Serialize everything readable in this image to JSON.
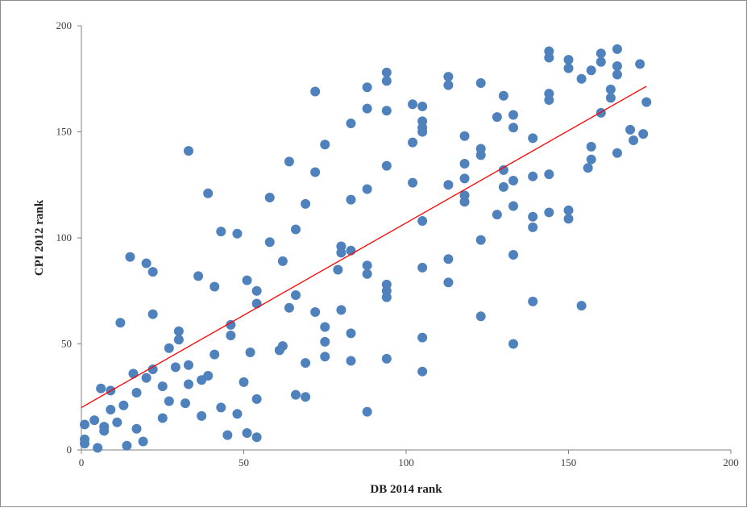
{
  "chart_data": {
    "type": "scatter",
    "xlabel": "DB 2014 rank",
    "ylabel": "CPI 2012 rank",
    "xlim": [
      0,
      200
    ],
    "ylim": [
      0,
      200
    ],
    "x_ticks": [
      "0",
      "50",
      "100",
      "150",
      "200"
    ],
    "y_ticks": [
      "0",
      "50",
      "100",
      "150",
      "200"
    ],
    "grid": false,
    "legend": "none",
    "colors": {
      "points": "#4f81bd",
      "trendline": "#ff0000",
      "axis": "#7f7f7f"
    },
    "trendline": {
      "x": [
        0,
        174
      ],
      "y": [
        20,
        171.5
      ]
    },
    "points": [
      [
        1,
        12
      ],
      [
        1,
        5
      ],
      [
        1,
        3
      ],
      [
        4,
        14
      ],
      [
        5,
        1
      ],
      [
        6,
        29
      ],
      [
        7,
        11
      ],
      [
        7,
        9
      ],
      [
        9,
        28
      ],
      [
        9,
        19
      ],
      [
        11,
        13
      ],
      [
        12,
        60
      ],
      [
        13,
        21
      ],
      [
        14,
        2
      ],
      [
        15,
        91
      ],
      [
        16,
        36
      ],
      [
        17,
        27
      ],
      [
        17,
        10
      ],
      [
        19,
        4
      ],
      [
        20,
        88
      ],
      [
        20,
        34
      ],
      [
        22,
        84
      ],
      [
        22,
        64
      ],
      [
        22,
        38
      ],
      [
        25,
        30
      ],
      [
        25,
        15
      ],
      [
        27,
        48
      ],
      [
        27,
        23
      ],
      [
        29,
        39
      ],
      [
        30,
        56
      ],
      [
        30,
        52
      ],
      [
        32,
        22
      ],
      [
        33,
        141
      ],
      [
        33,
        40
      ],
      [
        33,
        31
      ],
      [
        36,
        82
      ],
      [
        37,
        33
      ],
      [
        37,
        16
      ],
      [
        39,
        121
      ],
      [
        39,
        35
      ],
      [
        41,
        77
      ],
      [
        41,
        45
      ],
      [
        43,
        103
      ],
      [
        43,
        20
      ],
      [
        45,
        7
      ],
      [
        46,
        59
      ],
      [
        46,
        54
      ],
      [
        48,
        102
      ],
      [
        48,
        17
      ],
      [
        50,
        32
      ],
      [
        51,
        80
      ],
      [
        51,
        8
      ],
      [
        52,
        46
      ],
      [
        54,
        75
      ],
      [
        54,
        69
      ],
      [
        54,
        24
      ],
      [
        54,
        6
      ],
      [
        58,
        119
      ],
      [
        58,
        98
      ],
      [
        61,
        47
      ],
      [
        62,
        89
      ],
      [
        62,
        49
      ],
      [
        64,
        136
      ],
      [
        64,
        67
      ],
      [
        66,
        104
      ],
      [
        66,
        73
      ],
      [
        66,
        26
      ],
      [
        69,
        116
      ],
      [
        69,
        41
      ],
      [
        69,
        25
      ],
      [
        72,
        169
      ],
      [
        72,
        131
      ],
      [
        72,
        65
      ],
      [
        75,
        144
      ],
      [
        75,
        58
      ],
      [
        75,
        51
      ],
      [
        75,
        44
      ],
      [
        79,
        85
      ],
      [
        80,
        96
      ],
      [
        80,
        93
      ],
      [
        80,
        66
      ],
      [
        83,
        154
      ],
      [
        83,
        118
      ],
      [
        83,
        94
      ],
      [
        83,
        55
      ],
      [
        83,
        42
      ],
      [
        88,
        171
      ],
      [
        88,
        161
      ],
      [
        88,
        123
      ],
      [
        88,
        87
      ],
      [
        88,
        83
      ],
      [
        88,
        18
      ],
      [
        94,
        178
      ],
      [
        94,
        174
      ],
      [
        94,
        160
      ],
      [
        94,
        134
      ],
      [
        94,
        78
      ],
      [
        94,
        75
      ],
      [
        94,
        72
      ],
      [
        94,
        43
      ],
      [
        102,
        163
      ],
      [
        102,
        145
      ],
      [
        102,
        126
      ],
      [
        105,
        162
      ],
      [
        105,
        155
      ],
      [
        105,
        152
      ],
      [
        105,
        150
      ],
      [
        105,
        108
      ],
      [
        105,
        86
      ],
      [
        105,
        53
      ],
      [
        105,
        37
      ],
      [
        113,
        176
      ],
      [
        113,
        172
      ],
      [
        113,
        125
      ],
      [
        113,
        90
      ],
      [
        113,
        79
      ],
      [
        118,
        148
      ],
      [
        118,
        135
      ],
      [
        118,
        128
      ],
      [
        118,
        120
      ],
      [
        118,
        117
      ],
      [
        123,
        173
      ],
      [
        123,
        142
      ],
      [
        123,
        139
      ],
      [
        123,
        99
      ],
      [
        123,
        63
      ],
      [
        128,
        157
      ],
      [
        128,
        111
      ],
      [
        130,
        167
      ],
      [
        130,
        132
      ],
      [
        130,
        124
      ],
      [
        133,
        158
      ],
      [
        133,
        152
      ],
      [
        133,
        127
      ],
      [
        133,
        115
      ],
      [
        133,
        92
      ],
      [
        133,
        50
      ],
      [
        139,
        147
      ],
      [
        139,
        129
      ],
      [
        139,
        110
      ],
      [
        139,
        105
      ],
      [
        139,
        70
      ],
      [
        144,
        188
      ],
      [
        144,
        185
      ],
      [
        144,
        168
      ],
      [
        144,
        165
      ],
      [
        144,
        130
      ],
      [
        144,
        112
      ],
      [
        150,
        184
      ],
      [
        150,
        180
      ],
      [
        150,
        113
      ],
      [
        150,
        109
      ],
      [
        154,
        175
      ],
      [
        154,
        68
      ],
      [
        156,
        133
      ],
      [
        157,
        179
      ],
      [
        157,
        143
      ],
      [
        157,
        137
      ],
      [
        160,
        187
      ],
      [
        160,
        183
      ],
      [
        160,
        159
      ],
      [
        163,
        170
      ],
      [
        163,
        166
      ],
      [
        165,
        189
      ],
      [
        165,
        181
      ],
      [
        165,
        177
      ],
      [
        165,
        140
      ],
      [
        169,
        151
      ],
      [
        170,
        146
      ],
      [
        172,
        182
      ],
      [
        173,
        149
      ],
      [
        174,
        164
      ]
    ]
  }
}
